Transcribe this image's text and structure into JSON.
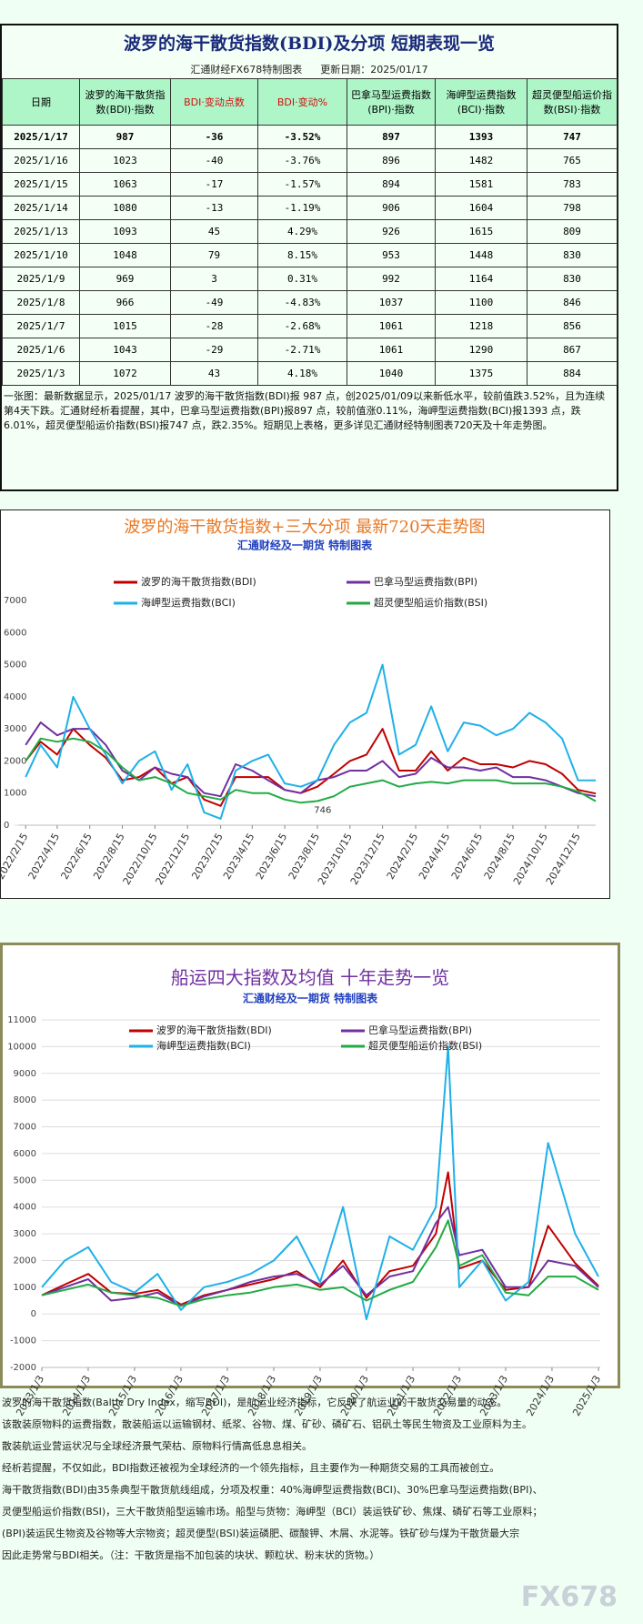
{
  "header": {
    "title": "波罗的海干散货指数(BDI)及分项  短期表现一览",
    "source": "汇通财经FX678特制图表",
    "updated": "更新日期：2025/01/17"
  },
  "table": {
    "columns": [
      "日期",
      "波罗的海干散货指数(BDI)·指数",
      "BDI·变动点数",
      "BDI·变动%",
      "巴拿马型运费指数(BPI)·指数",
      "海岬型运费指数(BCI)·指数",
      "超灵便型船运价指数(BSI)·指数"
    ],
    "rows": [
      [
        "2025/1/17",
        "987",
        "-36",
        "-3.52%",
        "897",
        "1393",
        "747"
      ],
      [
        "2025/1/16",
        "1023",
        "-40",
        "-3.76%",
        "896",
        "1482",
        "765"
      ],
      [
        "2025/1/15",
        "1063",
        "-17",
        "-1.57%",
        "894",
        "1581",
        "783"
      ],
      [
        "2025/1/14",
        "1080",
        "-13",
        "-1.19%",
        "906",
        "1604",
        "798"
      ],
      [
        "2025/1/13",
        "1093",
        "45",
        "4.29%",
        "926",
        "1615",
        "809"
      ],
      [
        "2025/1/10",
        "1048",
        "79",
        "8.15%",
        "953",
        "1448",
        "830"
      ],
      [
        "2025/1/9",
        "969",
        "3",
        "0.31%",
        "992",
        "1164",
        "830"
      ],
      [
        "2025/1/8",
        "966",
        "-49",
        "-4.83%",
        "1037",
        "1100",
        "846"
      ],
      [
        "2025/1/7",
        "1015",
        "-28",
        "-2.68%",
        "1061",
        "1218",
        "856"
      ],
      [
        "2025/1/6",
        "1043",
        "-29",
        "-2.71%",
        "1061",
        "1290",
        "867"
      ],
      [
        "2025/1/3",
        "1072",
        "43",
        "4.18%",
        "1040",
        "1375",
        "884"
      ]
    ]
  },
  "summary": "一张图：最新数据显示，2025/01/17 波罗的海干散货指数(BDI)报 987 点，创2025/01/09以来新低水平，较前值跌3.52%，且为连续第4天下跌。汇通财经析看提醒，其中，巴拿马型运费指数(BPI)报897 点，较前值涨0.11%，海岬型运费指数(BCI)报1393 点，跌6.01%，超灵便型船运价指数(BSI)报747 点，跌2.35%。短期见上表格，更多详见汇通财经特制图表720天及十年走势图。",
  "chart_data": [
    {
      "type": "line",
      "title": "波罗的海干散货指数+三大分项  最新720天走势图",
      "subtitle": "汇通财经及一期货  特制图表",
      "x": [
        "2022/2/15",
        "2022/3/15",
        "2022/4/15",
        "2022/5/15",
        "2022/6/15",
        "2022/7/15",
        "2022/8/15",
        "2022/9/15",
        "2022/10/15",
        "2022/11/15",
        "2022/12/15",
        "2023/1/15",
        "2023/2/15",
        "2023/3/15",
        "2023/4/15",
        "2023/5/15",
        "2023/6/15",
        "2023/7/15",
        "2023/8/15",
        "2023/9/15",
        "2023/10/15",
        "2023/11/15",
        "2023/12/15",
        "2024/1/15",
        "2024/2/15",
        "2024/3/15",
        "2024/4/15",
        "2024/5/15",
        "2024/6/15",
        "2024/7/15",
        "2024/8/15",
        "2024/9/15",
        "2024/10/15",
        "2024/11/15",
        "2024/12/15",
        "2025/1/17"
      ],
      "series": [
        {
          "name": "波罗的海干散货指数(BDI)",
          "color": "#c00000",
          "values": [
            2000,
            2600,
            2200,
            3000,
            2500,
            2100,
            1400,
            1500,
            1800,
            1300,
            1500,
            800,
            600,
            1500,
            1500,
            1500,
            1100,
            1000,
            1200,
            1600,
            2000,
            2200,
            3000,
            1700,
            1700,
            2300,
            1700,
            2100,
            1900,
            1900,
            1800,
            2000,
            1900,
            1600,
            1100,
            987
          ]
        },
        {
          "name": "巴拿马型运费指数(BPI)",
          "color": "#7030a0",
          "values": [
            2500,
            3200,
            2800,
            3000,
            3000,
            2500,
            1700,
            1400,
            1800,
            1600,
            1500,
            1000,
            900,
            1900,
            1700,
            1400,
            1100,
            1000,
            1400,
            1500,
            1700,
            1700,
            2000,
            1500,
            1600,
            2100,
            1800,
            1800,
            1700,
            1800,
            1500,
            1500,
            1400,
            1200,
            1000,
            897
          ]
        },
        {
          "name": "海岬型运费指数(BCI)",
          "color": "#1fb0e8",
          "values": [
            1500,
            2500,
            1800,
            4000,
            3000,
            2200,
            1300,
            2000,
            2300,
            1100,
            1900,
            400,
            200,
            1700,
            2000,
            2200,
            1300,
            1200,
            1400,
            2500,
            3200,
            3500,
            5000,
            2200,
            2500,
            3700,
            2300,
            3200,
            3100,
            2800,
            3000,
            3500,
            3200,
            2700,
            1400,
            1393
          ]
        },
        {
          "name": "超灵便型船运价指数(BSI)",
          "color": "#22aa44",
          "values": [
            2000,
            2700,
            2600,
            2700,
            2600,
            2300,
            1800,
            1400,
            1500,
            1300,
            1000,
            900,
            800,
            1100,
            1000,
            1000,
            800,
            700,
            750,
            900,
            1200,
            1300,
            1400,
            1200,
            1300,
            1350,
            1300,
            1400,
            1400,
            1400,
            1300,
            1300,
            1300,
            1200,
            1050,
            747
          ]
        }
      ],
      "xlim": [
        "2022/2/1",
        "2025/1/17"
      ],
      "xticks": [
        "2022/2/15",
        "2022/4/15",
        "2022/6/15",
        "2022/8/15",
        "2022/10/15",
        "2022/12/15",
        "2023/2/15",
        "2023/4/15",
        "2023/6/15",
        "2023/8/15",
        "2023/10/15",
        "2023/12/15",
        "2024/2/15",
        "2024/4/15",
        "2024/6/15",
        "2024/8/15",
        "2024/10/15",
        "2024/12/15"
      ],
      "ylim": [
        0,
        7000
      ],
      "yticks": [
        0,
        1000,
        2000,
        3000,
        4000,
        5000,
        6000,
        7000
      ],
      "grid": false,
      "annotations": [
        {
          "text": "746",
          "x": "2023/8/25",
          "y": 746
        }
      ]
    },
    {
      "type": "line",
      "title": "船运四大指数及均值  十年走势一览",
      "subtitle": "汇通财经及一期货  特制图表",
      "x": [
        "2013/1/3",
        "2013/7/3",
        "2014/1/3",
        "2014/7/3",
        "2015/1/3",
        "2015/7/3",
        "2016/1/3",
        "2016/7/3",
        "2017/1/3",
        "2017/7/3",
        "2018/1/3",
        "2018/7/3",
        "2019/1/3",
        "2019/7/3",
        "2020/1/3",
        "2020/7/3",
        "2021/1/3",
        "2021/7/3",
        "2021/10/7",
        "2022/1/3",
        "2022/7/3",
        "2023/1/3",
        "2023/7/3",
        "2023/12/4",
        "2024/7/3",
        "2025/1/3"
      ],
      "series": [
        {
          "name": "波罗的海干散货指数(BDI)",
          "color": "#c00000",
          "values": [
            700,
            1100,
            1500,
            800,
            750,
            900,
            350,
            700,
            900,
            1100,
            1300,
            1600,
            1000,
            2000,
            600,
            1600,
            1800,
            3000,
            5300,
            1700,
            2000,
            900,
            1000,
            3300,
            1900,
            1050
          ]
        },
        {
          "name": "巴拿马型运费指数(BPI)",
          "color": "#7030a0",
          "values": [
            700,
            1000,
            1300,
            500,
            600,
            800,
            300,
            650,
            900,
            1200,
            1400,
            1500,
            1100,
            1800,
            700,
            1400,
            1600,
            3400,
            4000,
            2200,
            2400,
            1000,
            1000,
            2000,
            1800,
            1000
          ]
        },
        {
          "name": "海岬型运费指数(BCI)",
          "color": "#1fb0e8",
          "values": [
            1000,
            2000,
            2500,
            1200,
            800,
            1500,
            150,
            1000,
            1200,
            1500,
            2000,
            2900,
            1200,
            4000,
            -200,
            2900,
            2400,
            4000,
            10000,
            1000,
            2000,
            500,
            1200,
            6400,
            3000,
            1400
          ]
        },
        {
          "name": "超灵便型船运价指数(BSI)",
          "color": "#22aa44",
          "values": [
            700,
            900,
            1100,
            800,
            700,
            600,
            300,
            550,
            700,
            800,
            1000,
            1100,
            900,
            1000,
            500,
            900,
            1200,
            2500,
            3500,
            1800,
            2200,
            800,
            700,
            1400,
            1400,
            900
          ]
        }
      ],
      "xlim": [
        "2013/1/3",
        "2025/1/17"
      ],
      "xticks": [
        "2013/1/3",
        "2014/1/3",
        "2015/1/3",
        "2016/1/3",
        "2017/1/3",
        "2018/1/3",
        "2019/1/3",
        "2020/1/3",
        "2021/1/3",
        "2022/1/3",
        "2023/1/3",
        "2024/1/3",
        "2025/1/3"
      ],
      "ylim": [
        -2000,
        11000
      ],
      "yticks": [
        -2000,
        -1000,
        0,
        1000,
        2000,
        3000,
        4000,
        5000,
        6000,
        7000,
        8000,
        9000,
        10000,
        11000
      ],
      "grid": true
    }
  ],
  "footer": [
    "波罗的海干散货指数(Baltic Dry Index，缩写BDI)，是航运业经济指标，它反映了航运业的干散货交易量的动态。",
    "该散装原物料的运费指数，散装船运以运输钢材、纸浆、谷物、煤、矿砂、磷矿石、铝矾土等民生物资及工业原料为主。",
    "散装航运业营运状况与全球经济景气荣枯、原物料行情高低息息相关。",
    "经析若提醒，不仅如此，BDI指数还被视为全球经济的一个领先指标，且主要作为一种期货交易的工具而被创立。",
    "海干散货指数(BDI)由35条典型干散货航线组成，分项及权重：40%海岬型运费指数(BCI)、30%巴拿马型运费指数(BPI)、",
    "灵便型船运价指数(BSI)，三大干散货船型运输市场。船型与货物：海岬型（BCI）装运铁矿砂、焦煤、磷矿石等工业原料；",
    "(BPI)装运民生物资及谷物等大宗物资；超灵便型(BSI)装运磷肥、碳酸钾、木屑、水泥等。铁矿砂与煤为干散货最大宗",
    "因此走势常与BDI相关。（注：干散货是指不加包装的块状、颗粒状、粉末状的货物。）"
  ],
  "watermark": "FX678"
}
